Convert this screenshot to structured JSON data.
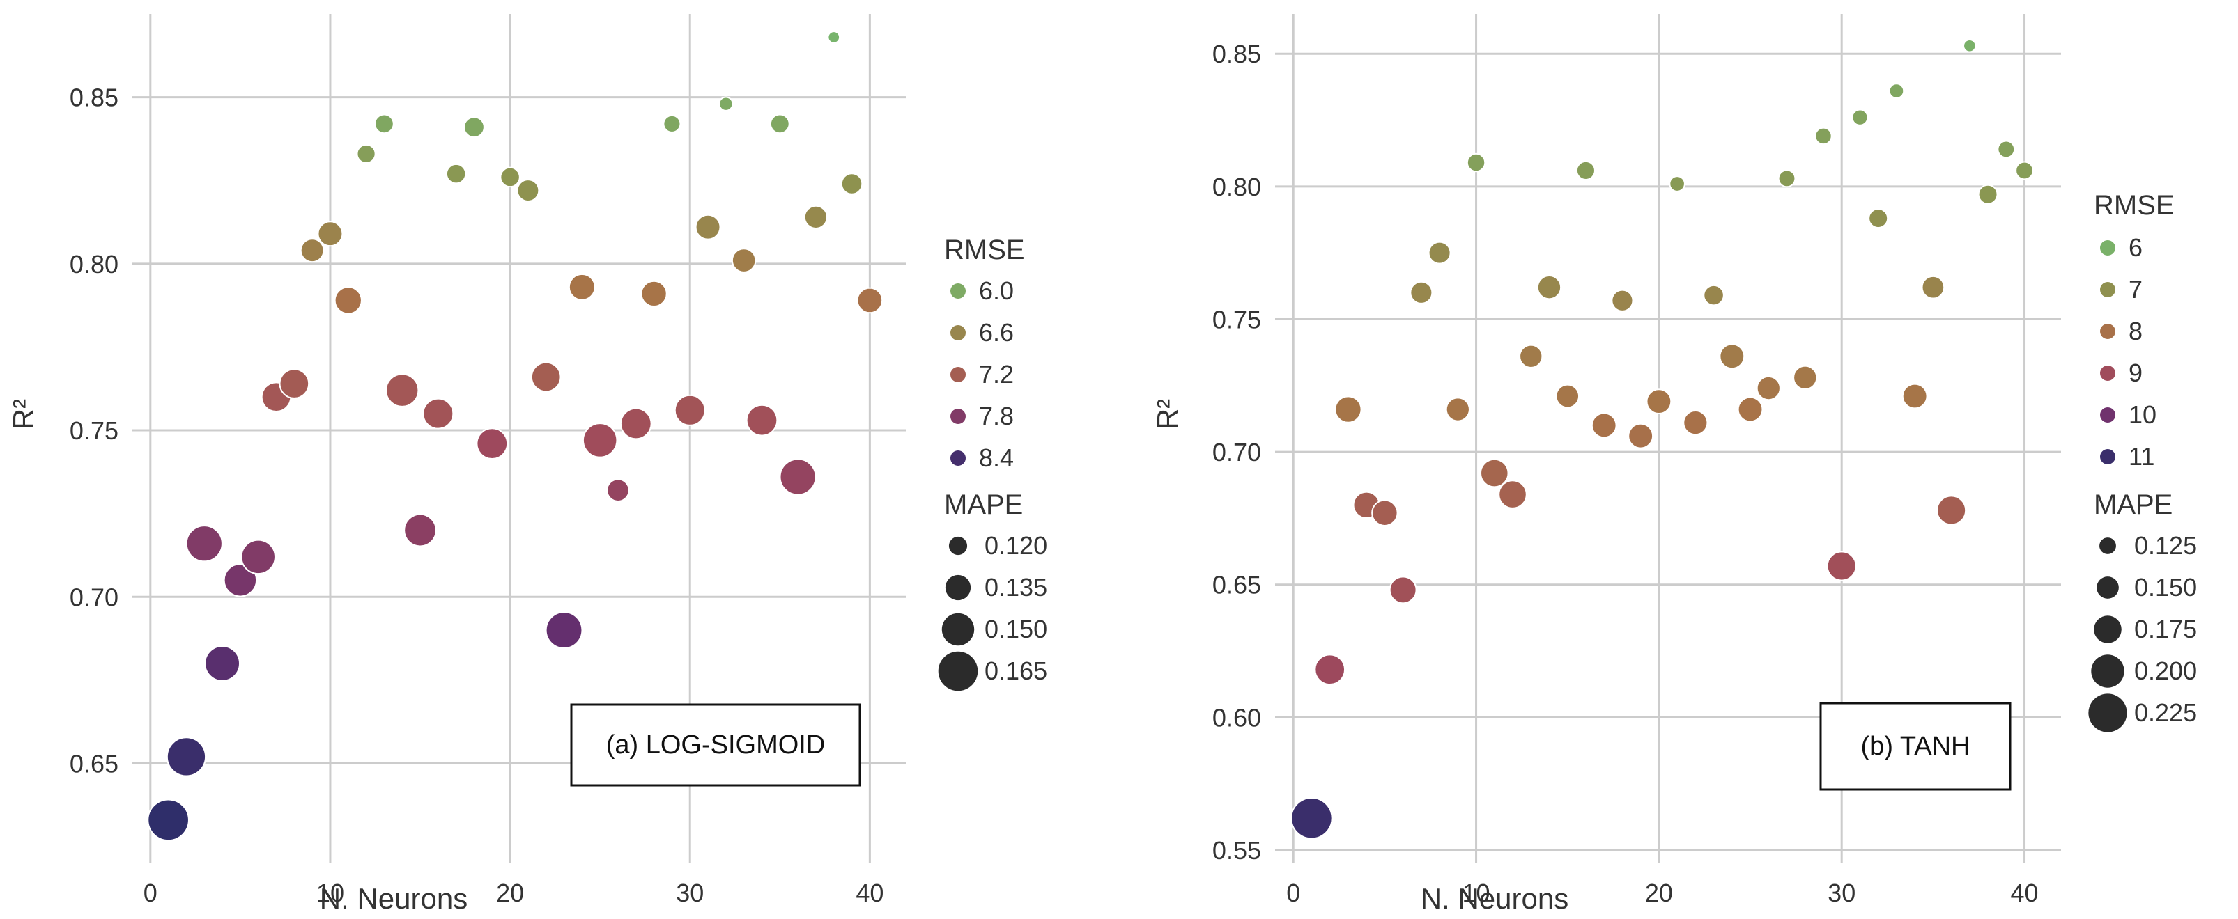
{
  "chart_data": [
    {
      "type": "scatter",
      "annotation": "(a) LOG-SIGMOID",
      "xlabel": "N. Neurons",
      "ylabel": "R²",
      "xlim": [
        -1,
        42
      ],
      "ylim": [
        0.62,
        0.875
      ],
      "xticks": [
        0,
        10,
        20,
        30,
        40
      ],
      "xtick_labels": [
        "0",
        "10",
        "20",
        "30",
        "40"
      ],
      "yticks": [
        0.65,
        0.7,
        0.75,
        0.8,
        0.85
      ],
      "ytick_labels": [
        "0.65",
        "0.70",
        "0.75",
        "0.80",
        "0.85"
      ],
      "grid": true,
      "color_legend": {
        "title": "RMSE",
        "min": 5.8,
        "max": 8.6,
        "entries": [
          {
            "label": "6.0",
            "value": 6.0
          },
          {
            "label": "6.6",
            "value": 6.6
          },
          {
            "label": "7.2",
            "value": 7.2
          },
          {
            "label": "7.8",
            "value": 7.8
          },
          {
            "label": "8.4",
            "value": 8.4
          }
        ]
      },
      "size_legend": {
        "title": "MAPE",
        "min": 0.105,
        "max": 0.17,
        "entries": [
          {
            "label": "0.120",
            "value": 0.12
          },
          {
            "label": "0.135",
            "value": 0.135
          },
          {
            "label": "0.150",
            "value": 0.15
          },
          {
            "label": "0.165",
            "value": 0.165
          }
        ]
      },
      "points": [
        {
          "x": 1,
          "y": 0.633,
          "rmse": 8.6,
          "mape": 0.168
        },
        {
          "x": 2,
          "y": 0.652,
          "rmse": 8.5,
          "mape": 0.163
        },
        {
          "x": 3,
          "y": 0.716,
          "rmse": 7.8,
          "mape": 0.157
        },
        {
          "x": 4,
          "y": 0.68,
          "rmse": 8.2,
          "mape": 0.155
        },
        {
          "x": 5,
          "y": 0.705,
          "rmse": 7.9,
          "mape": 0.15
        },
        {
          "x": 6,
          "y": 0.712,
          "rmse": 7.8,
          "mape": 0.153
        },
        {
          "x": 7,
          "y": 0.76,
          "rmse": 7.3,
          "mape": 0.143
        },
        {
          "x": 8,
          "y": 0.764,
          "rmse": 7.25,
          "mape": 0.143
        },
        {
          "x": 9,
          "y": 0.804,
          "rmse": 6.7,
          "mape": 0.13
        },
        {
          "x": 10,
          "y": 0.809,
          "rmse": 6.65,
          "mape": 0.133
        },
        {
          "x": 11,
          "y": 0.789,
          "rmse": 6.95,
          "mape": 0.138
        },
        {
          "x": 12,
          "y": 0.833,
          "rmse": 6.2,
          "mape": 0.12
        },
        {
          "x": 13,
          "y": 0.842,
          "rmse": 6.05,
          "mape": 0.121
        },
        {
          "x": 14,
          "y": 0.762,
          "rmse": 7.3,
          "mape": 0.15
        },
        {
          "x": 15,
          "y": 0.72,
          "rmse": 7.7,
          "mape": 0.149
        },
        {
          "x": 16,
          "y": 0.755,
          "rmse": 7.35,
          "mape": 0.145
        },
        {
          "x": 17,
          "y": 0.827,
          "rmse": 6.3,
          "mape": 0.122
        },
        {
          "x": 18,
          "y": 0.841,
          "rmse": 6.05,
          "mape": 0.124
        },
        {
          "x": 19,
          "y": 0.746,
          "rmse": 7.5,
          "mape": 0.146
        },
        {
          "x": 20,
          "y": 0.826,
          "rmse": 6.35,
          "mape": 0.122
        },
        {
          "x": 21,
          "y": 0.822,
          "rmse": 6.4,
          "mape": 0.127
        },
        {
          "x": 22,
          "y": 0.766,
          "rmse": 7.2,
          "mape": 0.143
        },
        {
          "x": 23,
          "y": 0.69,
          "rmse": 8.1,
          "mape": 0.158
        },
        {
          "x": 24,
          "y": 0.793,
          "rmse": 6.9,
          "mape": 0.136
        },
        {
          "x": 25,
          "y": 0.747,
          "rmse": 7.45,
          "mape": 0.153
        },
        {
          "x": 26,
          "y": 0.732,
          "rmse": 7.6,
          "mape": 0.128
        },
        {
          "x": 27,
          "y": 0.752,
          "rmse": 7.4,
          "mape": 0.146
        },
        {
          "x": 28,
          "y": 0.791,
          "rmse": 6.9,
          "mape": 0.135
        },
        {
          "x": 29,
          "y": 0.842,
          "rmse": 6.05,
          "mape": 0.117
        },
        {
          "x": 30,
          "y": 0.756,
          "rmse": 7.35,
          "mape": 0.145
        },
        {
          "x": 31,
          "y": 0.811,
          "rmse": 6.6,
          "mape": 0.133
        },
        {
          "x": 32,
          "y": 0.848,
          "rmse": 6.0,
          "mape": 0.11
        },
        {
          "x": 33,
          "y": 0.801,
          "rmse": 6.75,
          "mape": 0.131
        },
        {
          "x": 34,
          "y": 0.753,
          "rmse": 7.4,
          "mape": 0.146
        },
        {
          "x": 35,
          "y": 0.842,
          "rmse": 6.05,
          "mape": 0.121
        },
        {
          "x": 36,
          "y": 0.736,
          "rmse": 7.6,
          "mape": 0.157
        },
        {
          "x": 37,
          "y": 0.814,
          "rmse": 6.55,
          "mape": 0.129
        },
        {
          "x": 38,
          "y": 0.868,
          "rmse": 5.85,
          "mape": 0.106
        },
        {
          "x": 39,
          "y": 0.824,
          "rmse": 6.4,
          "mape": 0.125
        },
        {
          "x": 40,
          "y": 0.789,
          "rmse": 6.95,
          "mape": 0.134
        }
      ]
    },
    {
      "type": "scatter",
      "annotation": "(b) TANH",
      "xlabel": "N. Neurons",
      "ylabel": "R²",
      "xlim": [
        -1,
        42
      ],
      "ylim": [
        0.545,
        0.865
      ],
      "xticks": [
        0,
        10,
        20,
        30,
        40
      ],
      "xtick_labels": [
        "0",
        "10",
        "20",
        "30",
        "40"
      ],
      "yticks": [
        0.55,
        0.6,
        0.65,
        0.7,
        0.75,
        0.8,
        0.85
      ],
      "ytick_labels": [
        "0.55",
        "0.60",
        "0.65",
        "0.70",
        "0.75",
        "0.80",
        "0.85"
      ],
      "grid": true,
      "color_legend": {
        "title": "RMSE",
        "min": 5.8,
        "max": 11.2,
        "entries": [
          {
            "label": "6",
            "value": 6
          },
          {
            "label": "7",
            "value": 7
          },
          {
            "label": "8",
            "value": 8
          },
          {
            "label": "9",
            "value": 9
          },
          {
            "label": "10",
            "value": 10
          },
          {
            "label": "11",
            "value": 11
          }
        ]
      },
      "size_legend": {
        "title": "MAPE",
        "min": 0.1,
        "max": 0.24,
        "entries": [
          {
            "label": "0.125",
            "value": 0.125
          },
          {
            "label": "0.150",
            "value": 0.15
          },
          {
            "label": "0.175",
            "value": 0.175
          },
          {
            "label": "0.200",
            "value": 0.2
          },
          {
            "label": "0.225",
            "value": 0.225
          }
        ]
      },
      "points": [
        {
          "x": 1,
          "y": 0.562,
          "rmse": 11.0,
          "mape": 0.235
        },
        {
          "x": 2,
          "y": 0.618,
          "rmse": 9.1,
          "mape": 0.185
        },
        {
          "x": 3,
          "y": 0.716,
          "rmse": 7.9,
          "mape": 0.168
        },
        {
          "x": 4,
          "y": 0.68,
          "rmse": 8.5,
          "mape": 0.168
        },
        {
          "x": 5,
          "y": 0.677,
          "rmse": 8.5,
          "mape": 0.165
        },
        {
          "x": 6,
          "y": 0.648,
          "rmse": 8.85,
          "mape": 0.17
        },
        {
          "x": 7,
          "y": 0.76,
          "rmse": 7.3,
          "mape": 0.148
        },
        {
          "x": 8,
          "y": 0.775,
          "rmse": 7.2,
          "mape": 0.148
        },
        {
          "x": 9,
          "y": 0.716,
          "rmse": 7.9,
          "mape": 0.155
        },
        {
          "x": 10,
          "y": 0.809,
          "rmse": 6.5,
          "mape": 0.13
        },
        {
          "x": 11,
          "y": 0.692,
          "rmse": 8.3,
          "mape": 0.175
        },
        {
          "x": 12,
          "y": 0.684,
          "rmse": 8.4,
          "mape": 0.175
        },
        {
          "x": 13,
          "y": 0.736,
          "rmse": 7.7,
          "mape": 0.152
        },
        {
          "x": 14,
          "y": 0.762,
          "rmse": 7.3,
          "mape": 0.155
        },
        {
          "x": 15,
          "y": 0.721,
          "rmse": 7.85,
          "mape": 0.153
        },
        {
          "x": 16,
          "y": 0.806,
          "rmse": 6.6,
          "mape": 0.132
        },
        {
          "x": 17,
          "y": 0.71,
          "rmse": 8.0,
          "mape": 0.16
        },
        {
          "x": 18,
          "y": 0.757,
          "rmse": 7.4,
          "mape": 0.145
        },
        {
          "x": 19,
          "y": 0.706,
          "rmse": 8.05,
          "mape": 0.16
        },
        {
          "x": 20,
          "y": 0.719,
          "rmse": 7.9,
          "mape": 0.16
        },
        {
          "x": 21,
          "y": 0.801,
          "rmse": 6.7,
          "mape": 0.118
        },
        {
          "x": 22,
          "y": 0.711,
          "rmse": 8.0,
          "mape": 0.158
        },
        {
          "x": 23,
          "y": 0.759,
          "rmse": 7.35,
          "mape": 0.14
        },
        {
          "x": 24,
          "y": 0.736,
          "rmse": 7.7,
          "mape": 0.16
        },
        {
          "x": 25,
          "y": 0.716,
          "rmse": 7.95,
          "mape": 0.16
        },
        {
          "x": 26,
          "y": 0.724,
          "rmse": 7.85,
          "mape": 0.155
        },
        {
          "x": 27,
          "y": 0.803,
          "rmse": 6.7,
          "mape": 0.125
        },
        {
          "x": 28,
          "y": 0.728,
          "rmse": 7.8,
          "mape": 0.155
        },
        {
          "x": 29,
          "y": 0.819,
          "rmse": 6.5,
          "mape": 0.124
        },
        {
          "x": 30,
          "y": 0.657,
          "rmse": 8.9,
          "mape": 0.18
        },
        {
          "x": 31,
          "y": 0.826,
          "rmse": 6.4,
          "mape": 0.12
        },
        {
          "x": 32,
          "y": 0.788,
          "rmse": 7.0,
          "mape": 0.135
        },
        {
          "x": 33,
          "y": 0.836,
          "rmse": 6.3,
          "mape": 0.115
        },
        {
          "x": 34,
          "y": 0.721,
          "rmse": 7.9,
          "mape": 0.16
        },
        {
          "x": 35,
          "y": 0.762,
          "rmse": 7.4,
          "mape": 0.15
        },
        {
          "x": 36,
          "y": 0.678,
          "rmse": 8.5,
          "mape": 0.18
        },
        {
          "x": 37,
          "y": 0.853,
          "rmse": 6.0,
          "mape": 0.105
        },
        {
          "x": 38,
          "y": 0.797,
          "rmse": 6.8,
          "mape": 0.135
        },
        {
          "x": 39,
          "y": 0.814,
          "rmse": 6.5,
          "mape": 0.125
        },
        {
          "x": 40,
          "y": 0.806,
          "rmse": 6.6,
          "mape": 0.128
        }
      ]
    }
  ],
  "palette": [
    "#2f2e6a",
    "#6a2f6f",
    "#a04a5c",
    "#a87348",
    "#8c9450",
    "#76b76f"
  ]
}
